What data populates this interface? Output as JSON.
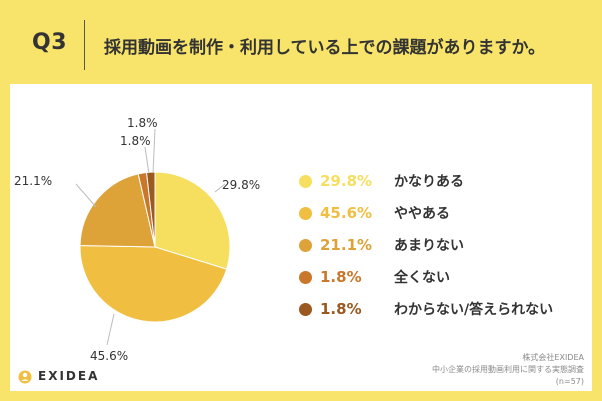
{
  "header": {
    "q_label": "Q3",
    "question": "採用動画を制作・利用している上での課題がありますか。"
  },
  "colors": {
    "background": "#f8e46a",
    "panel": "#ffffff",
    "slice_colors": [
      "#f6df5f",
      "#f0bf42",
      "#dda238",
      "#c9772a",
      "#9a5920"
    ]
  },
  "chart_data": {
    "type": "pie",
    "categories": [
      "かなりある",
      "ややある",
      "あまりない",
      "全くない",
      "わからない/答えられない"
    ],
    "values": [
      29.8,
      45.6,
      21.1,
      1.8,
      1.8
    ],
    "value_labels": [
      "29.8%",
      "45.6%",
      "21.1%",
      "1.8%",
      "1.8%"
    ],
    "start": "12 o'clock, clockwise",
    "legend_position": "right"
  },
  "branding": {
    "logo_text": "EXIDEA",
    "logo_icon": "exidea-logo-icon"
  },
  "source": {
    "company": "株式会社EXIDEA",
    "survey": "中小企業の採用動画利用に関する実態調査",
    "sample": "(n=57)"
  }
}
